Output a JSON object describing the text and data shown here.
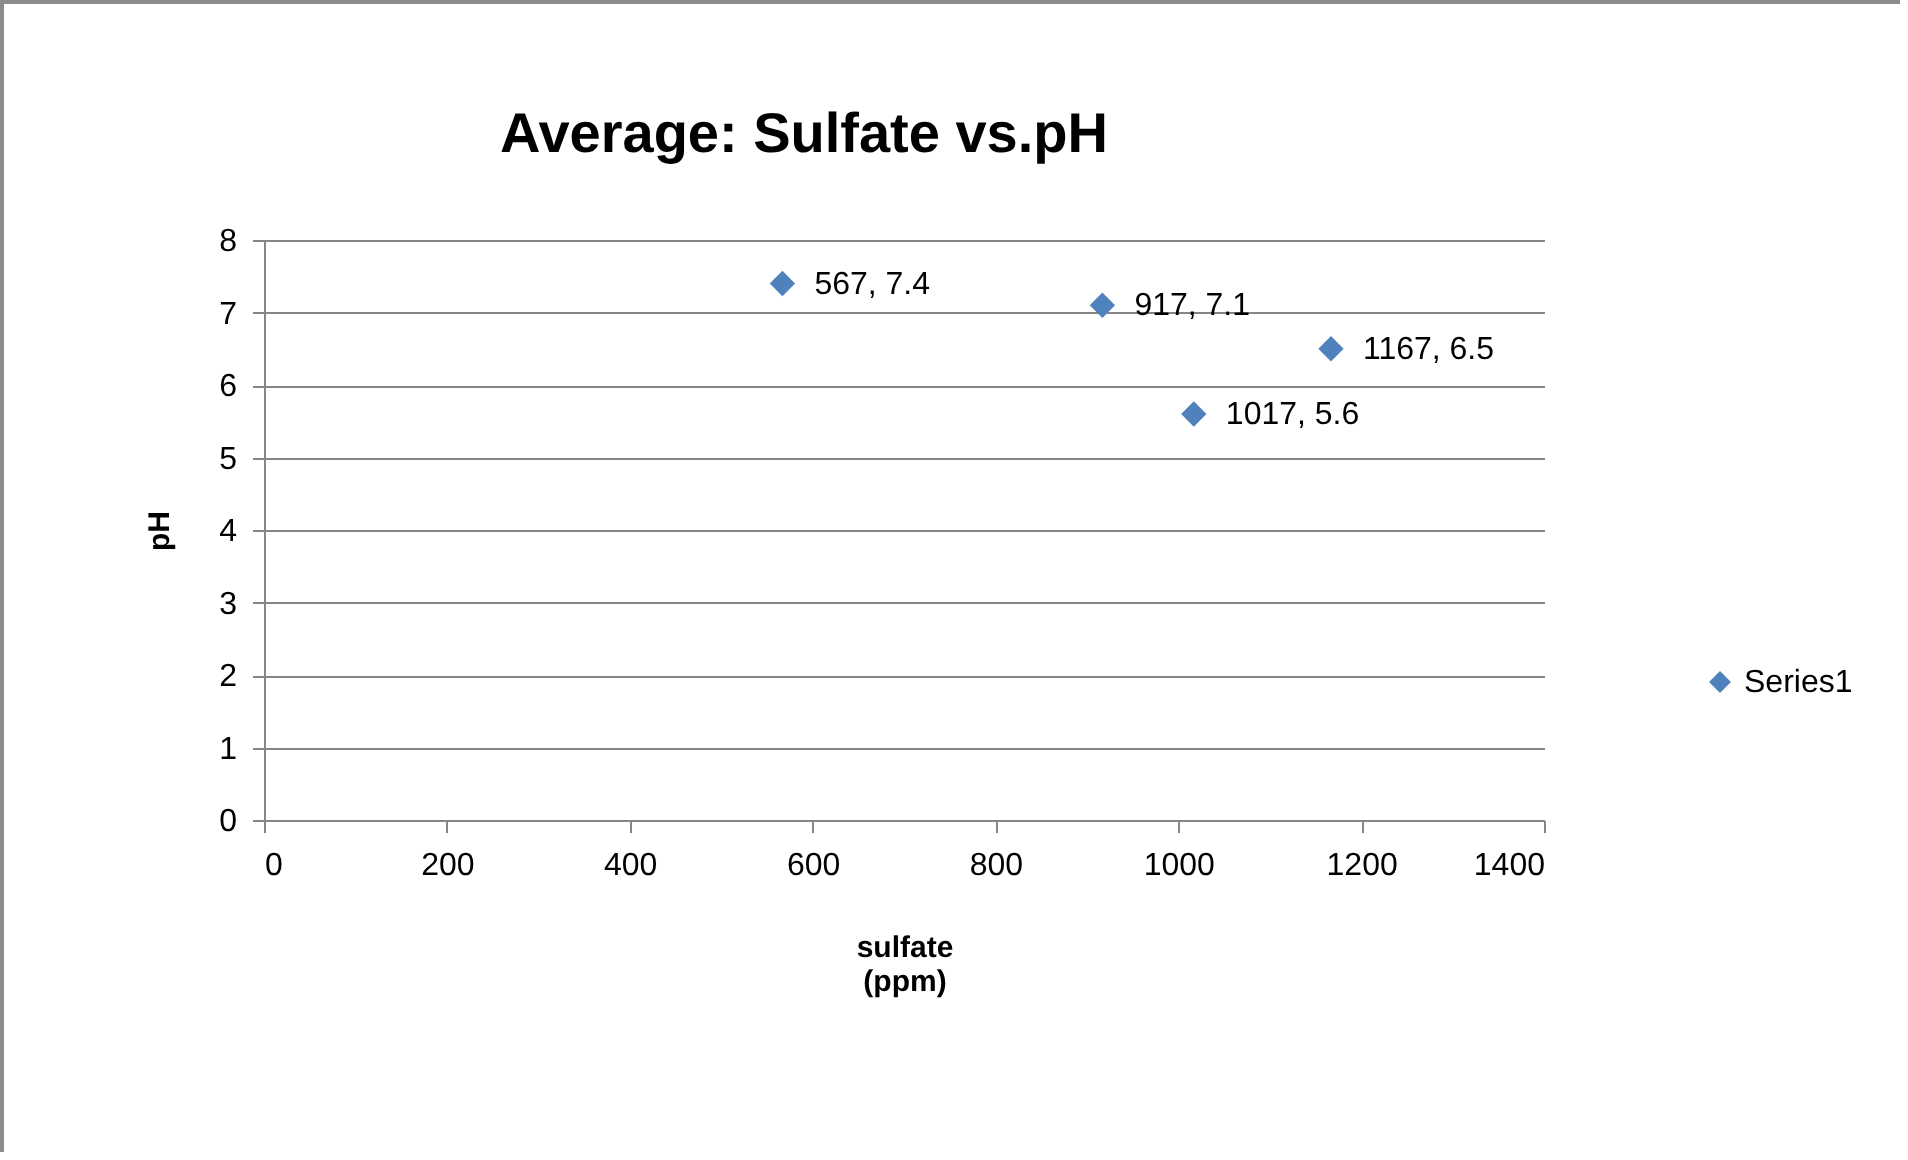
{
  "chart_data": {
    "type": "scatter",
    "title": "Average: Sulfate vs.pH",
    "xlabel": "sulfate (ppm)",
    "ylabel": "pH",
    "x": [
      567,
      917,
      1017,
      1167
    ],
    "series": [
      {
        "name": "Series1",
        "color": "#4f81bd",
        "values": [
          7.4,
          7.1,
          5.6,
          6.5
        ],
        "value_labels": [
          "567, 7.4",
          "917, 7.1",
          "1017, 5.6",
          "1167, 6.5"
        ]
      }
    ],
    "xlim": [
      0,
      1400
    ],
    "xticks": [
      0,
      200,
      400,
      600,
      800,
      1000,
      1200,
      1400
    ],
    "ylim": [
      0,
      8
    ],
    "yticks": [
      0,
      1,
      2,
      3,
      4,
      5,
      6,
      7,
      8
    ],
    "grid": "y",
    "legend": "right",
    "marker": "diamond"
  }
}
